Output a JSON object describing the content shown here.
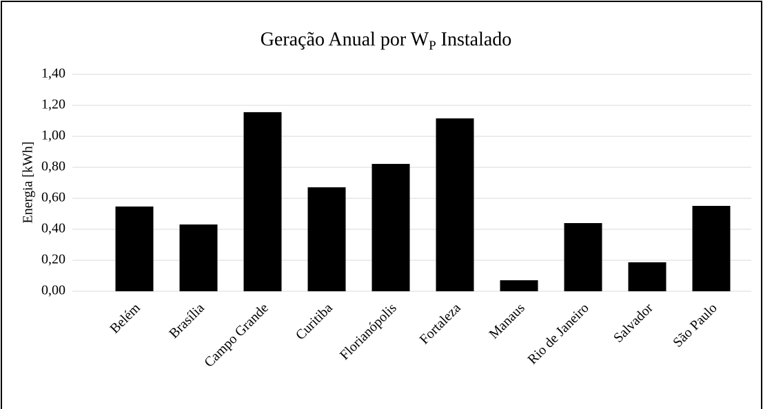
{
  "chart_data": {
    "type": "bar",
    "title_parts": [
      "Geração Anual por W",
      "P",
      " Instalado"
    ],
    "ylabel": "Energia [kWh]",
    "categories": [
      "Belém",
      "Brasília",
      "Campo Grande",
      "Curitiba",
      "Florianópolis",
      "Fortaleza",
      "Manaus",
      "Rio de Janeiro",
      "Salvador",
      "São Paulo"
    ],
    "values": [
      0.547,
      0.431,
      1.156,
      0.671,
      0.822,
      1.116,
      0.071,
      0.44,
      0.187,
      0.551
    ],
    "color": "#000000",
    "ylim": [
      0,
      1.4
    ],
    "yticks": [
      {
        "value": 0,
        "label": "0,00"
      },
      {
        "value": 0.2,
        "label": "0,20"
      },
      {
        "value": 0.4,
        "label": "0,40"
      },
      {
        "value": 0.6,
        "label": "0,60"
      },
      {
        "value": 0.8,
        "label": "0,80"
      },
      {
        "value": 1.0,
        "label": "1,00"
      },
      {
        "value": 1.2,
        "label": "1,20"
      },
      {
        "value": 1.4,
        "label": "1,40"
      }
    ],
    "grid": true
  }
}
